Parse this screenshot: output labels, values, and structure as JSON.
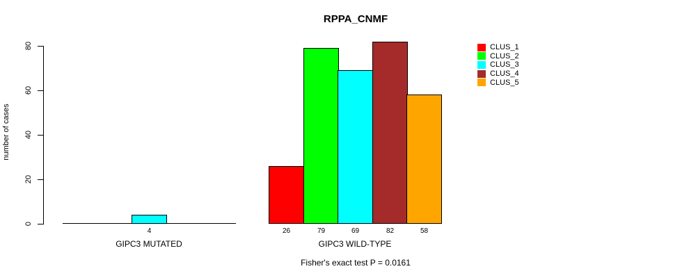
{
  "title": "RPPA_CNMF",
  "y_axis": {
    "label": "number of cases",
    "ticks": [
      0,
      20,
      40,
      60,
      80
    ]
  },
  "footer": "Fisher's exact test P = 0.0161",
  "legend": {
    "entries": [
      {
        "label": "CLUS_1",
        "color": "#FF0000"
      },
      {
        "label": "CLUS_2",
        "color": "#00FF00"
      },
      {
        "label": "CLUS_3",
        "color": "#00FFFF"
      },
      {
        "label": "CLUS_4",
        "color": "#A52A2A"
      },
      {
        "label": "CLUS_5",
        "color": "#FFA500"
      }
    ]
  },
  "chart_data": {
    "type": "bar",
    "title": "RPPA_CNMF",
    "xlabel": "",
    "ylabel": "number of cases",
    "ylim": [
      0,
      80
    ],
    "yticks": [
      0,
      20,
      40,
      60,
      80
    ],
    "grid": false,
    "legend_position": "top-right",
    "categories": [
      "GIPC3 MUTATED",
      "GIPC3 WILD-TYPE"
    ],
    "series": [
      {
        "name": "CLUS_1",
        "color": "#FF0000",
        "values": [
          0,
          26
        ]
      },
      {
        "name": "CLUS_2",
        "color": "#00FF00",
        "values": [
          0,
          79
        ]
      },
      {
        "name": "CLUS_3",
        "color": "#00FFFF",
        "values": [
          4,
          69
        ]
      },
      {
        "name": "CLUS_4",
        "color": "#A52A2A",
        "values": [
          0,
          82
        ]
      },
      {
        "name": "CLUS_5",
        "color": "#FFA500",
        "values": [
          0,
          58
        ]
      }
    ],
    "bar_value_labels": {
      "GIPC3 MUTATED": [
        4
      ],
      "GIPC3 WILD-TYPE": [
        26,
        79,
        69,
        82,
        58
      ]
    },
    "annotation": "Fisher's exact test P = 0.0161"
  }
}
